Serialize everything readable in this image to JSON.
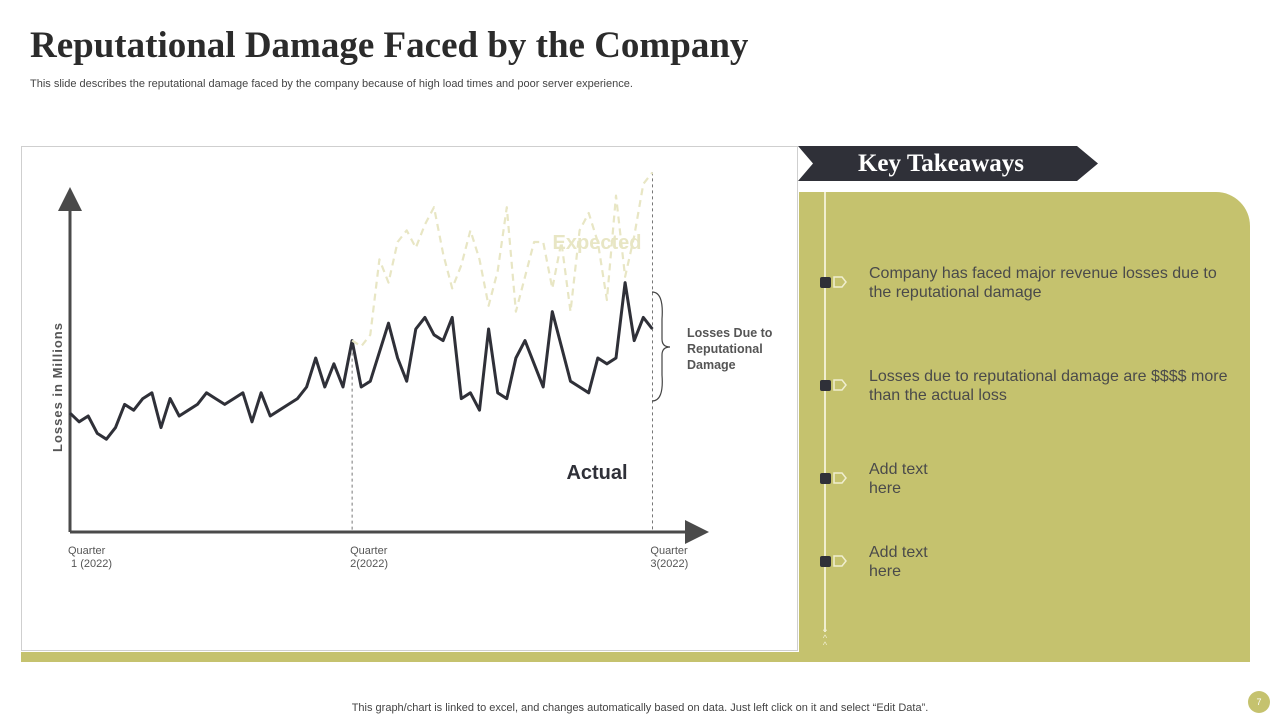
{
  "title": "Reputational Damage Faced by the Company",
  "subtitle": "This slide describes the reputational damage faced by the company because of high load times and poor server experience.",
  "key_takeaways": {
    "heading": "Key Takeaways",
    "items": [
      "Company has faced major revenue losses due to the reputational damage",
      "Losses due to reputational damage are $$$$ more than the actual loss",
      "Add text here",
      "Add text here"
    ]
  },
  "footer": "This graph/chart is linked to excel,  and changes automatically based on data. Just left click on it and select “Edit Data”.",
  "page_number": "7",
  "colors": {
    "accent": "#c5c26e",
    "dark": "#2f3038",
    "expected_line": "#e8e6c4",
    "actual_line": "#2f3038"
  },
  "chart_data": {
    "type": "line",
    "ylabel": "Losses in Millions",
    "xlabel": "",
    "ylim": [
      0,
      100
    ],
    "x_ticks": [
      {
        "index": 0,
        "label": "Quarter 1 (2022)"
      },
      {
        "index": 31,
        "label": "Quarter 2(2022)"
      },
      {
        "index": 64,
        "label": "Quarter 3(2022)"
      }
    ],
    "annotation": "Losses  Due to Reputational Damage",
    "series": [
      {
        "name": "Actual",
        "values": [
          20.5,
          19,
          20,
          17,
          16,
          18,
          22,
          21,
          23,
          24,
          18,
          23,
          20,
          21,
          22,
          24,
          23,
          22,
          23,
          24,
          19,
          24,
          20,
          21,
          22,
          23,
          25,
          30,
          25,
          29,
          25,
          33,
          25,
          26,
          31,
          36,
          30,
          26,
          35,
          37,
          34,
          33,
          37,
          23,
          24,
          21,
          35,
          24,
          23,
          30,
          33,
          29,
          25,
          38,
          32,
          26,
          25,
          24,
          30,
          29,
          30,
          43,
          33,
          37,
          35
        ]
      },
      {
        "name": "Expected",
        "values": [
          null,
          null,
          null,
          null,
          null,
          null,
          null,
          null,
          null,
          null,
          null,
          null,
          null,
          null,
          null,
          null,
          null,
          null,
          null,
          null,
          null,
          null,
          null,
          null,
          null,
          null,
          null,
          null,
          null,
          null,
          null,
          33,
          32,
          34,
          47,
          43,
          50,
          52,
          49,
          53,
          56,
          48,
          42,
          46,
          52,
          47,
          39,
          45,
          56,
          38,
          44,
          50,
          50,
          42,
          50,
          38,
          52,
          55,
          50,
          40,
          58,
          44,
          51,
          60,
          62
        ]
      }
    ]
  }
}
